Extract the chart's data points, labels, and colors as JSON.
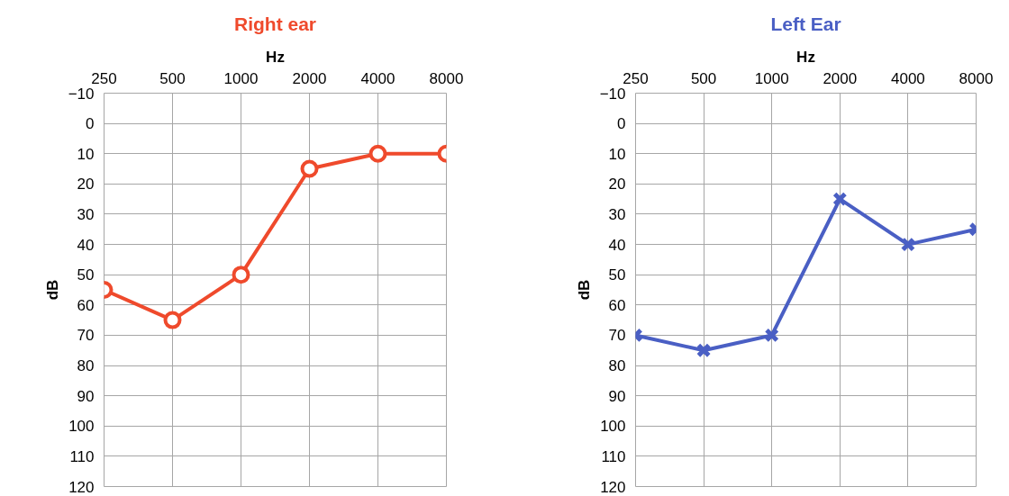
{
  "chart_data": [
    {
      "type": "line",
      "title": "Right ear",
      "xlabel": "Hz",
      "ylabel": "dB",
      "categories": [
        "250",
        "500",
        "1000",
        "2000",
        "4000",
        "8000"
      ],
      "series": [
        {
          "color": "#ef4a2c",
          "values": [
            55,
            65,
            50,
            15,
            10,
            10
          ]
        }
      ],
      "ylim": [
        120,
        -10
      ],
      "yticks": [
        -10,
        0,
        10,
        20,
        30,
        40,
        50,
        60,
        70,
        80,
        90,
        100,
        110,
        120
      ],
      "grid": true,
      "marker": "circle"
    },
    {
      "type": "line",
      "title": "Left Ear",
      "xlabel": "Hz",
      "ylabel": "dB",
      "categories": [
        "250",
        "500",
        "1000",
        "2000",
        "4000",
        "8000"
      ],
      "series": [
        {
          "color": "#4a5fc4",
          "values": [
            70,
            75,
            70,
            25,
            40,
            35
          ]
        }
      ],
      "ylim": [
        120,
        -10
      ],
      "yticks": [
        -10,
        0,
        10,
        20,
        30,
        40,
        50,
        60,
        70,
        80,
        90,
        100,
        110,
        120
      ],
      "grid": true,
      "marker": "cross"
    }
  ]
}
